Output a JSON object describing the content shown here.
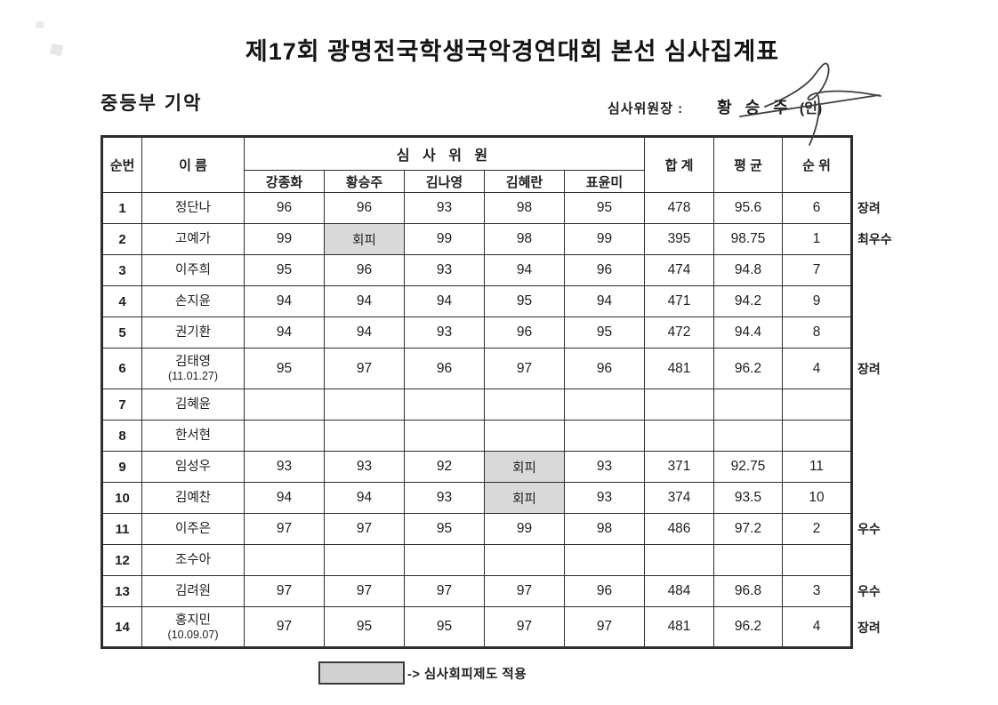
{
  "header": {
    "title": "제17회 광명전국학생국악경연대회 본선 심사집계표",
    "section": "중등부 기악",
    "chief_label": "심사위원장 :",
    "chief_name": "황 승 주",
    "chief_seal": "(인)"
  },
  "table": {
    "col_no": "순번",
    "col_name": "이 름",
    "col_judges_group": "심 사 위 원",
    "judges": [
      "강종화",
      "황승주",
      "김나영",
      "김혜란",
      "표윤미"
    ],
    "col_total": "합 계",
    "col_avg": "평 균",
    "col_rank": "순 위",
    "recusal_label": "회피",
    "rows": [
      {
        "no": "1",
        "name": "정단나",
        "sub": "",
        "scores": [
          "96",
          "96",
          "93",
          "98",
          "95"
        ],
        "total": "478",
        "avg": "95.6",
        "rank": "6",
        "award": "장려"
      },
      {
        "no": "2",
        "name": "고예가",
        "sub": "",
        "scores": [
          "99",
          "회피",
          "99",
          "98",
          "99"
        ],
        "total": "395",
        "avg": "98.75",
        "rank": "1",
        "award": "최우수"
      },
      {
        "no": "3",
        "name": "이주희",
        "sub": "",
        "scores": [
          "95",
          "96",
          "93",
          "94",
          "96"
        ],
        "total": "474",
        "avg": "94.8",
        "rank": "7",
        "award": ""
      },
      {
        "no": "4",
        "name": "손지윤",
        "sub": "",
        "scores": [
          "94",
          "94",
          "94",
          "95",
          "94"
        ],
        "total": "471",
        "avg": "94.2",
        "rank": "9",
        "award": ""
      },
      {
        "no": "5",
        "name": "권기환",
        "sub": "",
        "scores": [
          "94",
          "94",
          "93",
          "96",
          "95"
        ],
        "total": "472",
        "avg": "94.4",
        "rank": "8",
        "award": ""
      },
      {
        "no": "6",
        "name": "김태영",
        "sub": "(11.01.27)",
        "scores": [
          "95",
          "97",
          "96",
          "97",
          "96"
        ],
        "total": "481",
        "avg": "96.2",
        "rank": "4",
        "award": "장려"
      },
      {
        "no": "7",
        "name": "김혜윤",
        "sub": "",
        "scores": [
          "",
          "",
          "",
          "",
          ""
        ],
        "total": "",
        "avg": "",
        "rank": "",
        "award": ""
      },
      {
        "no": "8",
        "name": "한서현",
        "sub": "",
        "scores": [
          "",
          "",
          "",
          "",
          ""
        ],
        "total": "",
        "avg": "",
        "rank": "",
        "award": ""
      },
      {
        "no": "9",
        "name": "임성우",
        "sub": "",
        "scores": [
          "93",
          "93",
          "92",
          "회피",
          "93"
        ],
        "total": "371",
        "avg": "92.75",
        "rank": "11",
        "award": ""
      },
      {
        "no": "10",
        "name": "김예찬",
        "sub": "",
        "scores": [
          "94",
          "94",
          "93",
          "회피",
          "93"
        ],
        "total": "374",
        "avg": "93.5",
        "rank": "10",
        "award": ""
      },
      {
        "no": "11",
        "name": "이주은",
        "sub": "",
        "scores": [
          "97",
          "97",
          "95",
          "99",
          "98"
        ],
        "total": "486",
        "avg": "97.2",
        "rank": "2",
        "award": "우수"
      },
      {
        "no": "12",
        "name": "조수아",
        "sub": "",
        "scores": [
          "",
          "",
          "",
          "",
          ""
        ],
        "total": "",
        "avg": "",
        "rank": "",
        "award": ""
      },
      {
        "no": "13",
        "name": "김려원",
        "sub": "",
        "scores": [
          "97",
          "97",
          "97",
          "97",
          "96"
        ],
        "total": "484",
        "avg": "96.8",
        "rank": "3",
        "award": "우수"
      },
      {
        "no": "14",
        "name": "홍지민",
        "sub": "(10.09.07)",
        "scores": [
          "97",
          "95",
          "95",
          "97",
          "97"
        ],
        "total": "481",
        "avg": "96.2",
        "rank": "4",
        "award": "장려"
      }
    ]
  },
  "legend": {
    "text": "-> 심사회피제도 적용"
  },
  "colors": {
    "ink": "#1f1f1f",
    "table_border": "#2d2d2d",
    "recusal_bg": "#d9d9d9",
    "legend_box_bg": "#d2d2d2"
  }
}
